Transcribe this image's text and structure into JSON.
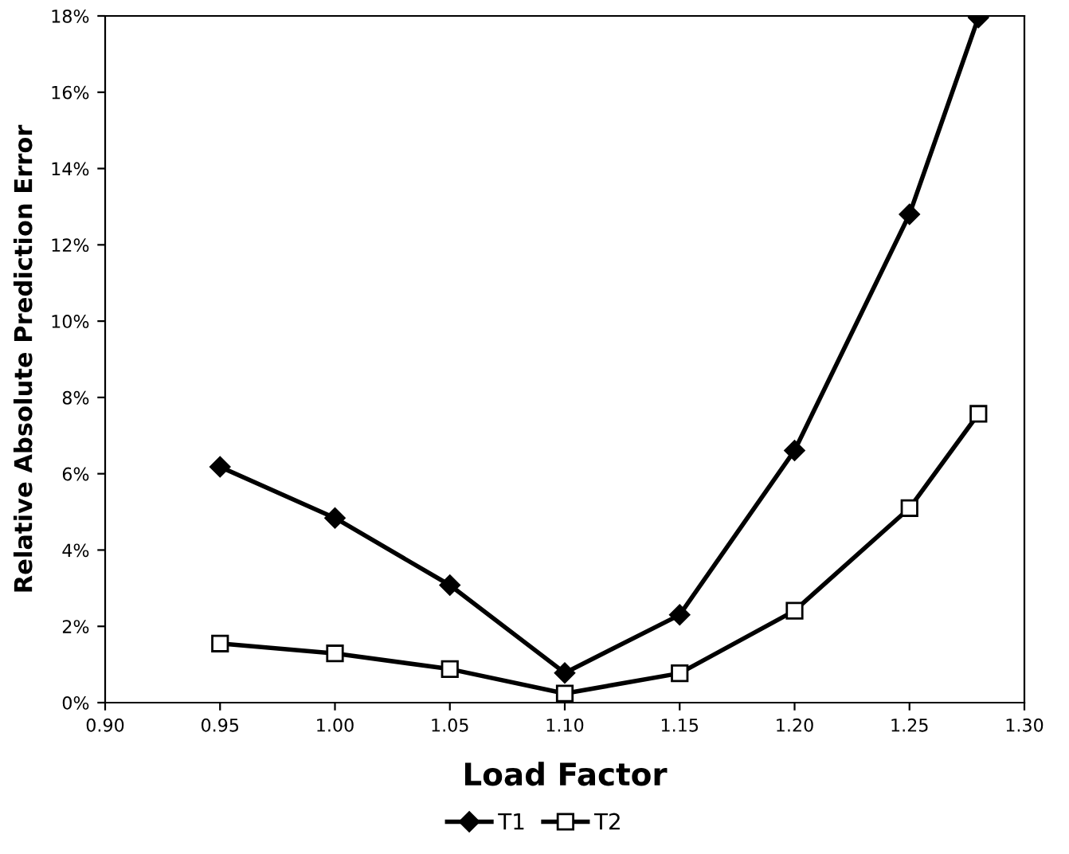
{
  "chart_data": {
    "type": "line",
    "xlabel": "Load Factor",
    "ylabel": "Relative Absolute Prediction Error",
    "x": [
      0.95,
      1.0,
      1.05,
      1.1,
      1.15,
      1.2,
      1.25,
      1.28
    ],
    "series": [
      {
        "name": "T1",
        "color": "#000000",
        "marker": "diamond",
        "values": [
          6.18,
          4.84,
          3.08,
          0.78,
          2.3,
          6.61,
          12.8,
          17.96
        ]
      },
      {
        "name": "T2",
        "color": "#000000",
        "marker": "square",
        "values": [
          1.55,
          1.29,
          0.88,
          0.24,
          0.77,
          2.41,
          5.1,
          7.57
        ]
      }
    ],
    "xlim": [
      0.9,
      1.3
    ],
    "xticks": [
      {
        "value": 0.9,
        "label": "0.90"
      },
      {
        "value": 0.95,
        "label": "0.95"
      },
      {
        "value": 1.0,
        "label": "1.00"
      },
      {
        "value": 1.05,
        "label": "1.05"
      },
      {
        "value": 1.1,
        "label": "1.10"
      },
      {
        "value": 1.15,
        "label": "1.15"
      },
      {
        "value": 1.2,
        "label": "1.20"
      },
      {
        "value": 1.25,
        "label": "1.25"
      },
      {
        "value": 1.3,
        "label": "1.30"
      }
    ],
    "ylim": [
      0,
      18
    ],
    "yticks": [
      {
        "value": 0,
        "label": "0%"
      },
      {
        "value": 2,
        "label": "2%"
      },
      {
        "value": 4,
        "label": "4%"
      },
      {
        "value": 6,
        "label": "6%"
      },
      {
        "value": 8,
        "label": "8%"
      },
      {
        "value": 10,
        "label": "10%"
      },
      {
        "value": 12,
        "label": "12%"
      },
      {
        "value": 14,
        "label": "14%"
      },
      {
        "value": 16,
        "label": "16%"
      },
      {
        "value": 18,
        "label": "18%"
      }
    ],
    "grid": false,
    "legend": "bottom",
    "line_style": "solid"
  }
}
